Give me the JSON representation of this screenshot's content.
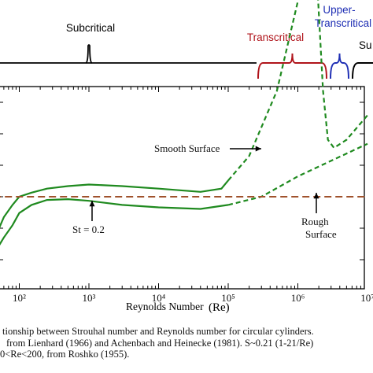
{
  "chart_data": {
    "type": "line",
    "x_scale": "log",
    "x_tick_labels": [
      "10²",
      "10³",
      "10⁴",
      "10⁵",
      "10⁶",
      "10⁷"
    ],
    "x_ticks": [
      100,
      1000,
      10000,
      100000,
      1000000,
      10000000
    ],
    "xlabel": "Reynolds Number",
    "xlabel_symbol": "(Re)",
    "regimes": [
      {
        "label": "Subcritical",
        "color": "#000000"
      },
      {
        "label": "Transcritical",
        "color": "#b0141b"
      },
      {
        "label": "Upper-",
        "label2": "Transcritical",
        "color": "#1f2fb4"
      },
      {
        "label": "Su",
        "color": "#000000"
      }
    ],
    "annotations": {
      "smooth": "Smooth Surface",
      "st": "St = 0.2",
      "rough1": "Rough",
      "rough2": "Surface"
    },
    "series": [
      {
        "style": "band",
        "color": "#1f8a1f",
        "upper": [
          [
            40,
            0.14
          ],
          [
            60,
            0.175
          ],
          [
            80,
            0.19
          ],
          [
            100,
            0.2
          ],
          [
            150,
            0.205
          ],
          [
            250,
            0.21
          ],
          [
            500,
            0.213
          ],
          [
            1000,
            0.215
          ],
          [
            3000,
            0.213
          ],
          [
            10000,
            0.21
          ],
          [
            40000,
            0.206
          ],
          [
            80000,
            0.21
          ],
          [
            100000,
            0.22
          ]
        ],
        "lower": [
          [
            40,
            0.125
          ],
          [
            60,
            0.15
          ],
          [
            80,
            0.165
          ],
          [
            100,
            0.18
          ],
          [
            150,
            0.19
          ],
          [
            250,
            0.196
          ],
          [
            500,
            0.197
          ],
          [
            1000,
            0.195
          ],
          [
            3000,
            0.19
          ],
          [
            10000,
            0.187
          ],
          [
            40000,
            0.185
          ],
          [
            100000,
            0.19
          ]
        ]
      },
      {
        "style": "dashed",
        "color": "#1f8a1f",
        "points": [
          [
            100000,
            0.22
          ],
          [
            200000,
            0.25
          ],
          [
            500000,
            0.33
          ],
          [
            1000000,
            0.44
          ],
          [
            1500000,
            0.47
          ],
          [
            1900000,
            0.46
          ],
          [
            2300000,
            0.33
          ],
          [
            2700000,
            0.27
          ],
          [
            3300000,
            0.26
          ],
          [
            5000000,
            0.27
          ],
          [
            10000000,
            0.3
          ]
        ]
      },
      {
        "style": "dashed",
        "color": "#1f8a1f",
        "points": [
          [
            100000,
            0.19
          ],
          [
            300000,
            0.2
          ],
          [
            1000000,
            0.225
          ],
          [
            10000000,
            0.265
          ]
        ]
      },
      {
        "style": "dashed",
        "color": "#a0522d",
        "points": [
          [
            30,
            0.2
          ],
          [
            10000000,
            0.2
          ]
        ]
      }
    ]
  },
  "caption": {
    "line1": "tionship between Strouhal number and Reynolds number for circular cylinders.",
    "line2": "from Lienhard (1966) and Achenbach and Heinecke (1981). S~0.21 (1-21/Re)",
    "line3": "0<Re<200, from Roshko (1955)."
  }
}
